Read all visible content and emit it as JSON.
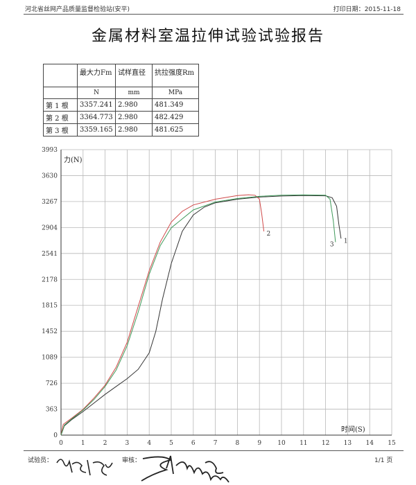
{
  "header": {
    "org": "河北省丝网产品质量监督检验站(安平)",
    "print_date_label": "打印日期：",
    "print_date": "2015-11-18"
  },
  "title": "金属材料室温拉伸试验试验报告",
  "table": {
    "headers": [
      "",
      "最大力Fm",
      "试样直径",
      "抗拉强度Rm"
    ],
    "units": [
      "",
      "N",
      "mm",
      "MPa"
    ],
    "rows": [
      [
        "第 1 根",
        "3357.241",
        "2.980",
        "481.349"
      ],
      [
        "第 2 根",
        "3364.773",
        "2.980",
        "482.429"
      ],
      [
        "第 3 根",
        "3359.165",
        "2.980",
        "481.625"
      ]
    ]
  },
  "chart_data": {
    "type": "line",
    "ylabel": "力(N)",
    "xlabel": "时间(S)",
    "xlim": [
      0,
      15
    ],
    "ylim": [
      0,
      3993
    ],
    "x_ticks": [
      0,
      1,
      2,
      3,
      4,
      5,
      6,
      7,
      8,
      9,
      10,
      11,
      12,
      13,
      14,
      15
    ],
    "y_ticks": [
      0,
      363,
      726,
      1089,
      1452,
      1815,
      2178,
      2541,
      2904,
      3267,
      3630,
      3993
    ],
    "grid": true,
    "series": [
      {
        "name": "1",
        "color": "#333333",
        "x": [
          0,
          0.15,
          0.5,
          1,
          1.5,
          2,
          2.5,
          3,
          3.5,
          4,
          4.3,
          4.6,
          5,
          5.5,
          6,
          6.5,
          7,
          8,
          9,
          10,
          11,
          12,
          12.3,
          12.5,
          12.6,
          12.7
        ],
        "y": [
          0,
          130,
          220,
          330,
          450,
          570,
          680,
          790,
          920,
          1150,
          1450,
          1900,
          2400,
          2850,
          3080,
          3190,
          3250,
          3300,
          3330,
          3345,
          3350,
          3348,
          3320,
          3200,
          2950,
          2750
        ]
      },
      {
        "name": "2",
        "color": "#d04848",
        "x": [
          0,
          0.1,
          0.5,
          1,
          1.5,
          2,
          2.5,
          3,
          3.5,
          4,
          4.5,
          5,
          5.5,
          6,
          7,
          8,
          8.5,
          8.8,
          9.0,
          9.1,
          9.2
        ],
        "y": [
          0,
          150,
          240,
          360,
          520,
          700,
          950,
          1300,
          1800,
          2300,
          2700,
          2980,
          3130,
          3220,
          3300,
          3350,
          3362,
          3355,
          3300,
          3100,
          2850
        ]
      },
      {
        "name": "3",
        "color": "#3f9a5a",
        "x": [
          0,
          0.15,
          0.5,
          1,
          1.5,
          2,
          2.5,
          3,
          3.5,
          4,
          4.5,
          5,
          6,
          7,
          8,
          9,
          10,
          11,
          12,
          12.2,
          12.35,
          12.45
        ],
        "y": [
          0,
          140,
          230,
          350,
          500,
          680,
          910,
          1250,
          1720,
          2250,
          2650,
          2900,
          3150,
          3260,
          3310,
          3340,
          3355,
          3360,
          3355,
          3300,
          3000,
          2700
        ]
      }
    ]
  },
  "footer": {
    "tester_label": "试验员：",
    "reviewer_label": "审核：",
    "page": "1/1 页"
  }
}
